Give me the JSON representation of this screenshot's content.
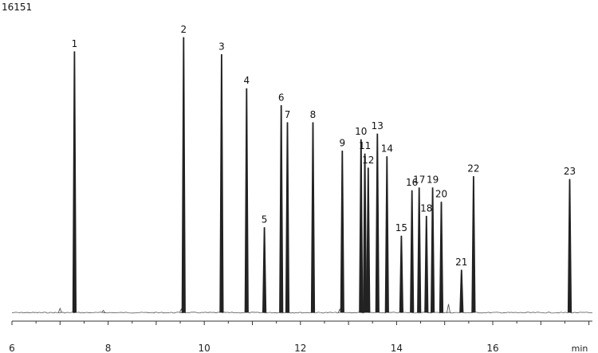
{
  "document_id": "16151",
  "chart_data": {
    "type": "line",
    "title": "",
    "xlabel": "min",
    "ylabel": "",
    "xlim": [
      6,
      18.2
    ],
    "ylim": [
      0,
      100
    ],
    "x_ticks": [
      6,
      8,
      10,
      12,
      14,
      16
    ],
    "grid": false,
    "baseline": 3,
    "line_color": "#333333",
    "peaks": [
      {
        "label": "1",
        "x": 7.3,
        "y": 95
      },
      {
        "label": "2",
        "x": 9.57,
        "y": 100
      },
      {
        "label": "3",
        "x": 10.36,
        "y": 94
      },
      {
        "label": "4",
        "x": 10.88,
        "y": 82
      },
      {
        "label": "5",
        "x": 11.25,
        "y": 33
      },
      {
        "label": "6",
        "x": 11.6,
        "y": 76
      },
      {
        "label": "7",
        "x": 11.73,
        "y": 70
      },
      {
        "label": "8",
        "x": 12.26,
        "y": 70
      },
      {
        "label": "9",
        "x": 12.87,
        "y": 60
      },
      {
        "label": "10",
        "x": 13.26,
        "y": 64
      },
      {
        "label": "11",
        "x": 13.34,
        "y": 59
      },
      {
        "label": "12",
        "x": 13.41,
        "y": 54
      },
      {
        "label": "13",
        "x": 13.6,
        "y": 66
      },
      {
        "label": "14",
        "x": 13.8,
        "y": 58
      },
      {
        "label": "15",
        "x": 14.1,
        "y": 30
      },
      {
        "label": "16",
        "x": 14.32,
        "y": 46
      },
      {
        "label": "17",
        "x": 14.47,
        "y": 47
      },
      {
        "label": "18",
        "x": 14.62,
        "y": 37
      },
      {
        "label": "19",
        "x": 14.75,
        "y": 47
      },
      {
        "label": "20",
        "x": 14.93,
        "y": 42
      },
      {
        "label": "21",
        "x": 15.35,
        "y": 18
      },
      {
        "label": "22",
        "x": 15.6,
        "y": 51
      },
      {
        "label": "23",
        "x": 17.6,
        "y": 50
      }
    ],
    "minor_bumps": [
      {
        "x": 7.0,
        "y": 4.5
      },
      {
        "x": 7.9,
        "y": 3.8
      },
      {
        "x": 9.52,
        "y": 4.2
      },
      {
        "x": 12.82,
        "y": 4.2
      },
      {
        "x": 15.08,
        "y": 6
      }
    ]
  }
}
